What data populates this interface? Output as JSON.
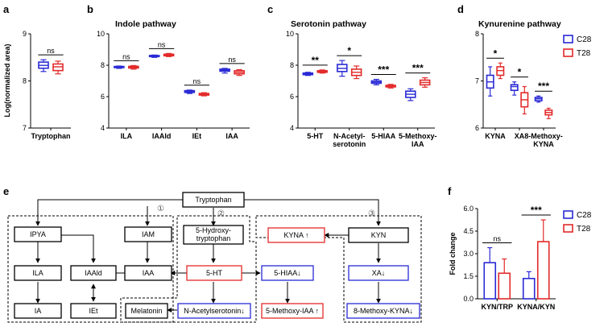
{
  "colors": {
    "c28": "#2a2ad6",
    "t28": "#e32a2a",
    "axis": "#000000"
  },
  "legend": {
    "c28": "C28",
    "t28": "T28"
  },
  "panels": {
    "a": {
      "label": "a"
    },
    "b": {
      "label": "b",
      "title": "Indole pathway"
    },
    "c": {
      "label": "c",
      "title": "Serotonin pathway"
    },
    "d": {
      "label": "d",
      "title": "Kynurenine pathway"
    },
    "e": {
      "label": "e"
    },
    "f": {
      "label": "f"
    }
  },
  "chart_data": [
    {
      "panel": "a",
      "type": "box",
      "ylabel": "Log(normalized area)",
      "ylim": [
        7,
        9
      ],
      "yticks": [
        "7",
        "8",
        "9"
      ],
      "categories": [
        "Tryptophan"
      ],
      "series": [
        {
          "name": "C28",
          "boxes": [
            {
              "min": 8.2,
              "q1": 8.27,
              "median": 8.33,
              "q3": 8.4,
              "max": 8.45
            }
          ]
        },
        {
          "name": "T28",
          "boxes": [
            {
              "min": 8.15,
              "q1": 8.22,
              "median": 8.3,
              "q3": 8.36,
              "max": 8.42
            }
          ]
        }
      ],
      "significance": [
        "ns"
      ]
    },
    {
      "panel": "b",
      "type": "box",
      "title": "Indole pathway",
      "ylim": [
        4,
        10
      ],
      "yticks": [
        "4",
        "6",
        "8",
        "10"
      ],
      "categories": [
        "ILA",
        "IAAld",
        "IEt",
        "IAA"
      ],
      "series": [
        {
          "name": "C28",
          "boxes": [
            {
              "min": 7.8,
              "q1": 7.85,
              "median": 7.88,
              "q3": 7.92,
              "max": 7.95
            },
            {
              "min": 8.5,
              "q1": 8.55,
              "median": 8.6,
              "q3": 8.62,
              "max": 8.65
            },
            {
              "min": 6.2,
              "q1": 6.27,
              "median": 6.32,
              "q3": 6.38,
              "max": 6.42
            },
            {
              "min": 7.5,
              "q1": 7.62,
              "median": 7.68,
              "q3": 7.75,
              "max": 7.8
            }
          ]
        },
        {
          "name": "T28",
          "boxes": [
            {
              "min": 7.75,
              "q1": 7.82,
              "median": 7.88,
              "q3": 7.93,
              "max": 7.98
            },
            {
              "min": 8.55,
              "q1": 8.6,
              "median": 8.65,
              "q3": 8.7,
              "max": 8.75
            },
            {
              "min": 6.05,
              "q1": 6.1,
              "median": 6.15,
              "q3": 6.2,
              "max": 6.25
            },
            {
              "min": 7.35,
              "q1": 7.45,
              "median": 7.55,
              "q3": 7.65,
              "max": 7.72
            }
          ]
        }
      ],
      "significance": [
        "ns",
        "ns",
        "ns",
        "ns"
      ]
    },
    {
      "panel": "c",
      "type": "box",
      "title": "Serotonin pathway",
      "ylim": [
        4,
        10
      ],
      "yticks": [
        "4",
        "6",
        "8",
        "10"
      ],
      "categories": [
        "5-HT",
        "N-Acetyl-\nserotonin",
        "5-HIAA",
        "5-Methoxy-\nIAA"
      ],
      "series": [
        {
          "name": "C28",
          "boxes": [
            {
              "min": 7.35,
              "q1": 7.4,
              "median": 7.45,
              "q3": 7.5,
              "max": 7.55
            },
            {
              "min": 7.3,
              "q1": 7.6,
              "median": 7.8,
              "q3": 8.05,
              "max": 8.3
            },
            {
              "min": 6.75,
              "q1": 6.85,
              "median": 6.92,
              "q3": 7.0,
              "max": 7.1
            },
            {
              "min": 5.75,
              "q1": 5.95,
              "median": 6.15,
              "q3": 6.35,
              "max": 6.5
            }
          ]
        },
        {
          "name": "T28",
          "boxes": [
            {
              "min": 7.5,
              "q1": 7.55,
              "median": 7.6,
              "q3": 7.65,
              "max": 7.7
            },
            {
              "min": 7.15,
              "q1": 7.35,
              "median": 7.55,
              "q3": 7.75,
              "max": 7.95
            },
            {
              "min": 6.55,
              "q1": 6.62,
              "median": 6.68,
              "q3": 6.72,
              "max": 6.78
            },
            {
              "min": 6.6,
              "q1": 6.75,
              "median": 6.9,
              "q3": 7.05,
              "max": 7.2
            }
          ]
        }
      ],
      "significance": [
        "**",
        "*",
        "***",
        "***"
      ]
    },
    {
      "panel": "d",
      "type": "box",
      "title": "Kynurenine pathway",
      "ylim": [
        6,
        8
      ],
      "yticks": [
        "6",
        "7",
        "8"
      ],
      "categories": [
        "KYNA",
        "XA",
        "8-Methoxy-\nKYNA"
      ],
      "series": [
        {
          "name": "C28",
          "boxes": [
            {
              "min": 6.68,
              "q1": 6.85,
              "median": 6.98,
              "q3": 7.12,
              "max": 7.3
            },
            {
              "min": 6.7,
              "q1": 6.8,
              "median": 6.88,
              "q3": 6.92,
              "max": 6.98
            },
            {
              "min": 6.55,
              "q1": 6.58,
              "median": 6.62,
              "q3": 6.65,
              "max": 6.68
            }
          ]
        },
        {
          "name": "T28",
          "boxes": [
            {
              "min": 7.05,
              "q1": 7.12,
              "median": 7.22,
              "q3": 7.3,
              "max": 7.38
            },
            {
              "min": 6.3,
              "q1": 6.45,
              "median": 6.6,
              "q3": 6.75,
              "max": 6.88
            },
            {
              "min": 6.2,
              "q1": 6.28,
              "median": 6.33,
              "q3": 6.38,
              "max": 6.42
            }
          ]
        }
      ],
      "significance": [
        "*",
        "*",
        "***"
      ]
    },
    {
      "panel": "f",
      "type": "bar",
      "ylabel": "Fold change",
      "ylim": [
        0,
        6
      ],
      "yticks": [
        "0.0",
        "1.5",
        "3.0",
        "4.5",
        "6.0"
      ],
      "categories": [
        "KYN/TRP",
        "KYNA/KYN"
      ],
      "series": [
        {
          "name": "C28",
          "values": [
            2.4,
            1.35
          ],
          "errors": [
            1.0,
            0.45
          ]
        },
        {
          "name": "T28",
          "values": [
            1.7,
            3.8
          ],
          "errors": [
            0.95,
            1.45
          ]
        }
      ],
      "significance": [
        "ns",
        "***"
      ]
    }
  ],
  "diagram": {
    "nodes": {
      "tryptophan": "Tryptophan",
      "ipya": "IPYA",
      "iam": "IAM",
      "ila": "ILA",
      "iaald": "IAAld",
      "iaa": "IAA",
      "ia": "IA",
      "iet": "IEt",
      "hydroxytrp": "5-Hydroxy-\ntryptophan",
      "ht": "5-HT",
      "hiaa": "5-HIAA↓",
      "nacetyl": "N-Acetylserotonin↓",
      "methoxyiaa": "5-Methoxy-IAA ↑",
      "melatonin": "Melatonin",
      "kyna": "KYNA ↑",
      "kyn": "KYN",
      "xa": "XA↓",
      "methoxykyna": "8-Methoxy-KYNA↓"
    },
    "route_markers": [
      "①",
      "②",
      "③"
    ]
  }
}
